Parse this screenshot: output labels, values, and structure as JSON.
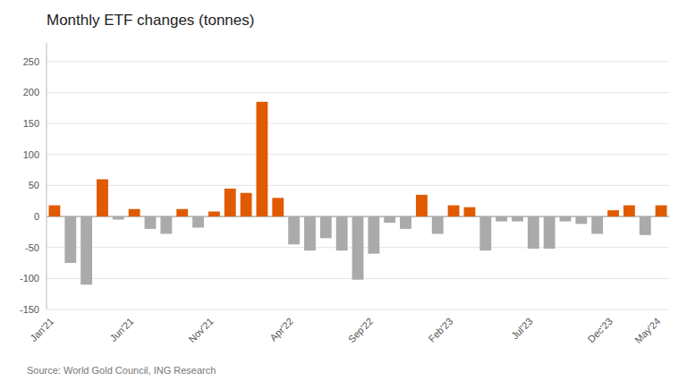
{
  "chart_data": {
    "type": "bar",
    "title": "Monthly ETF changes (tonnes)",
    "annotations": [
      "Source: World Gold Council, ING Research"
    ],
    "categories": [
      "Jan'21",
      null,
      null,
      null,
      null,
      "Jun'21",
      null,
      null,
      null,
      null,
      "Nov'21",
      null,
      null,
      null,
      null,
      "Apr'22",
      null,
      null,
      null,
      null,
      "Sep'22",
      null,
      null,
      null,
      null,
      "Feb'23",
      null,
      null,
      null,
      null,
      "Jul'23",
      null,
      null,
      null,
      null,
      "Dec'23",
      null,
      null,
      "May'24"
    ],
    "values": [
      18,
      -75,
      -110,
      60,
      -5,
      12,
      -20,
      -28,
      12,
      -18,
      8,
      45,
      38,
      185,
      30,
      -45,
      -55,
      -35,
      -55,
      -102,
      -60,
      -10,
      -20,
      35,
      -28,
      18,
      15,
      -55,
      -8,
      -8,
      -52,
      -52,
      -8,
      -12,
      -28,
      10,
      18,
      -30,
      18
    ],
    "colors": [
      "#e05a00",
      "#aaaaaa",
      "#aaaaaa",
      "#e05a00",
      "#aaaaaa",
      "#e05a00",
      "#aaaaaa",
      "#aaaaaa",
      "#e05a00",
      "#aaaaaa",
      "#e05a00",
      "#e05a00",
      "#e05a00",
      "#e05a00",
      "#e05a00",
      "#aaaaaa",
      "#aaaaaa",
      "#aaaaaa",
      "#aaaaaa",
      "#aaaaaa",
      "#aaaaaa",
      "#aaaaaa",
      "#aaaaaa",
      "#e05a00",
      "#aaaaaa",
      "#e05a00",
      "#e05a00",
      "#aaaaaa",
      "#aaaaaa",
      "#aaaaaa",
      "#aaaaaa",
      "#aaaaaa",
      "#aaaaaa",
      "#aaaaaa",
      "#aaaaaa",
      "#e05a00",
      "#e05a00",
      "#aaaaaa",
      "#e05a00"
    ],
    "ylim": [
      -150,
      280
    ],
    "yticks": [
      -150,
      -100,
      -50,
      0,
      50,
      100,
      150,
      200,
      250
    ],
    "grid": true
  }
}
